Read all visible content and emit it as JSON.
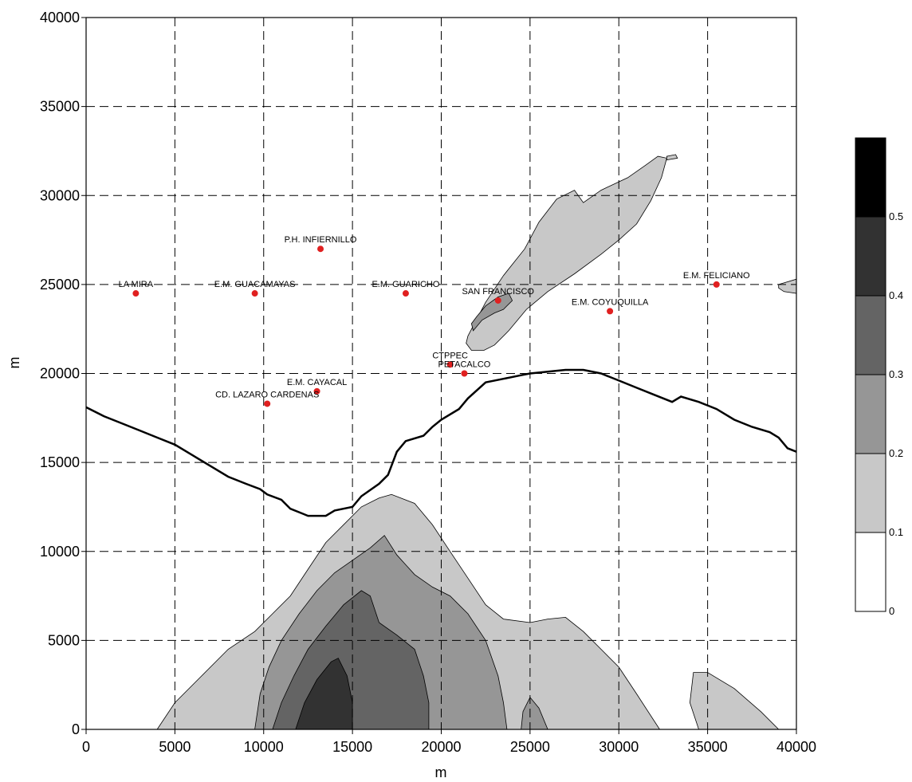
{
  "chart_data": {
    "type": "contour",
    "xlabel": "m",
    "ylabel": "m",
    "xlim": [
      0,
      40000
    ],
    "ylim": [
      0,
      40000
    ],
    "xticks": [
      0,
      5000,
      10000,
      15000,
      20000,
      25000,
      30000,
      35000,
      40000
    ],
    "yticks": [
      0,
      5000,
      10000,
      15000,
      20000,
      25000,
      30000,
      35000,
      40000
    ],
    "grid": true,
    "colorbar": {
      "levels": [
        0,
        0.1,
        0.2,
        0.3,
        0.4,
        0.5
      ],
      "labels": [
        "0",
        "0.1",
        "0.2",
        "0.3",
        "0.4",
        "0.5"
      ],
      "colors": [
        "#ffffff",
        "#c8c8c8",
        "#969696",
        "#646464",
        "#323232",
        "#000000"
      ],
      "placement": "right"
    },
    "contours": [
      {
        "level": 0.1,
        "color": "#c8c8c8",
        "points": [
          [
            4000,
            0
          ],
          [
            5000,
            1500
          ],
          [
            6500,
            3000
          ],
          [
            8000,
            4500
          ],
          [
            9500,
            5500
          ],
          [
            10500,
            6500
          ],
          [
            11500,
            7500
          ],
          [
            12500,
            9000
          ],
          [
            13500,
            10500
          ],
          [
            14500,
            11500
          ],
          [
            15500,
            12500
          ],
          [
            16500,
            13000
          ],
          [
            17200,
            13200
          ],
          [
            18500,
            12700
          ],
          [
            19500,
            11500
          ],
          [
            20500,
            10000
          ],
          [
            21500,
            8500
          ],
          [
            22500,
            7000
          ],
          [
            23500,
            6200
          ],
          [
            25000,
            6000
          ],
          [
            26000,
            6200
          ],
          [
            27000,
            6300
          ],
          [
            28000,
            5500
          ],
          [
            29000,
            4500
          ],
          [
            30000,
            3500
          ],
          [
            31000,
            2000
          ],
          [
            32300,
            0
          ]
        ]
      },
      {
        "level": 0.1,
        "color": "#c8c8c8",
        "points": [
          [
            21500,
            22100
          ],
          [
            22500,
            24000
          ],
          [
            23500,
            25500
          ],
          [
            24700,
            27000
          ],
          [
            25500,
            28500
          ],
          [
            26500,
            29800
          ],
          [
            27500,
            30300
          ],
          [
            28000,
            29600
          ],
          [
            29000,
            30300
          ],
          [
            30500,
            31000
          ],
          [
            31500,
            31700
          ],
          [
            32200,
            32200
          ],
          [
            32700,
            32100
          ],
          [
            32400,
            31000
          ],
          [
            31800,
            29700
          ],
          [
            31000,
            28400
          ],
          [
            30000,
            27500
          ],
          [
            29000,
            26700
          ],
          [
            27500,
            25600
          ],
          [
            26000,
            24600
          ],
          [
            24800,
            23600
          ],
          [
            23800,
            22400
          ],
          [
            23000,
            21600
          ],
          [
            22400,
            21300
          ],
          [
            21700,
            21300
          ],
          [
            21400,
            21700
          ]
        ]
      },
      {
        "level": 0.1,
        "color": "#c8c8c8",
        "points": [
          [
            32700,
            32000
          ],
          [
            33300,
            32100
          ],
          [
            33200,
            32300
          ],
          [
            32700,
            32200
          ]
        ]
      },
      {
        "level": 0.1,
        "color": "#c8c8c8",
        "points": [
          [
            39000,
            25000
          ],
          [
            40000,
            25300
          ],
          [
            40000,
            24500
          ],
          [
            39300,
            24600
          ],
          [
            39000,
            24800
          ]
        ]
      },
      {
        "level": 0.1,
        "color": "#c8c8c8",
        "points": [
          [
            34500,
            0
          ],
          [
            34000,
            1500
          ],
          [
            34200,
            3200
          ],
          [
            35000,
            3200
          ],
          [
            36500,
            2300
          ],
          [
            38000,
            1000
          ],
          [
            39000,
            0
          ]
        ]
      },
      {
        "level": 0.2,
        "color": "#969696",
        "points": [
          [
            9500,
            0
          ],
          [
            9800,
            2000
          ],
          [
            10300,
            3500
          ],
          [
            11000,
            5000
          ],
          [
            12000,
            6500
          ],
          [
            13000,
            7800
          ],
          [
            14000,
            8800
          ],
          [
            15000,
            9500
          ],
          [
            16000,
            10200
          ],
          [
            16800,
            10900
          ],
          [
            17500,
            9800
          ],
          [
            18500,
            8700
          ],
          [
            19500,
            8000
          ],
          [
            20500,
            7500
          ],
          [
            21500,
            6500
          ],
          [
            22500,
            5000
          ],
          [
            23200,
            3000
          ],
          [
            23500,
            1500
          ],
          [
            23700,
            0
          ]
        ]
      },
      {
        "level": 0.2,
        "color": "#969696",
        "points": [
          [
            24500,
            0
          ],
          [
            24600,
            1000
          ],
          [
            25000,
            1800
          ],
          [
            25500,
            1200
          ],
          [
            26000,
            0
          ]
        ]
      },
      {
        "level": 0.2,
        "color": "#969696",
        "points": [
          [
            21800,
            22400
          ],
          [
            22300,
            23000
          ],
          [
            23000,
            23400
          ],
          [
            23500,
            23600
          ],
          [
            24000,
            24100
          ],
          [
            23800,
            24500
          ],
          [
            23200,
            24300
          ],
          [
            22500,
            23800
          ],
          [
            22000,
            23200
          ],
          [
            21700,
            22800
          ]
        ]
      },
      {
        "level": 0.3,
        "color": "#646464",
        "points": [
          [
            10500,
            0
          ],
          [
            11000,
            1500
          ],
          [
            11700,
            3000
          ],
          [
            12500,
            4500
          ],
          [
            13500,
            5800
          ],
          [
            14500,
            7000
          ],
          [
            15500,
            7800
          ],
          [
            16000,
            7500
          ],
          [
            16500,
            6000
          ],
          [
            17500,
            5300
          ],
          [
            18500,
            4500
          ],
          [
            19000,
            3000
          ],
          [
            19300,
            1500
          ],
          [
            19300,
            0
          ]
        ]
      },
      {
        "level": 0.4,
        "color": "#323232",
        "points": [
          [
            11800,
            0
          ],
          [
            12300,
            1500
          ],
          [
            13000,
            2800
          ],
          [
            13800,
            3800
          ],
          [
            14200,
            4000
          ],
          [
            14700,
            3000
          ],
          [
            15000,
            1500
          ],
          [
            15000,
            0
          ]
        ]
      }
    ],
    "boundary_line": [
      [
        0,
        18100
      ],
      [
        1000,
        17600
      ],
      [
        2000,
        17200
      ],
      [
        3000,
        16800
      ],
      [
        4000,
        16400
      ],
      [
        5000,
        16000
      ],
      [
        6000,
        15400
      ],
      [
        7000,
        14800
      ],
      [
        8000,
        14200
      ],
      [
        9000,
        13800
      ],
      [
        9800,
        13500
      ],
      [
        10200,
        13200
      ],
      [
        11000,
        12900
      ],
      [
        11500,
        12400
      ],
      [
        12500,
        12000
      ],
      [
        13500,
        12000
      ],
      [
        14000,
        12300
      ],
      [
        15000,
        12500
      ],
      [
        15500,
        13100
      ],
      [
        16500,
        13800
      ],
      [
        17000,
        14300
      ],
      [
        17500,
        15600
      ],
      [
        18000,
        16200
      ],
      [
        19000,
        16500
      ],
      [
        19500,
        17000
      ],
      [
        20000,
        17400
      ],
      [
        21000,
        18000
      ],
      [
        21500,
        18600
      ],
      [
        22500,
        19500
      ],
      [
        23500,
        19700
      ],
      [
        24500,
        19900
      ],
      [
        25000,
        20000
      ],
      [
        26000,
        20100
      ],
      [
        27000,
        20200
      ],
      [
        28000,
        20200
      ],
      [
        29000,
        20000
      ],
      [
        30000,
        19600
      ],
      [
        31000,
        19200
      ],
      [
        32000,
        18800
      ],
      [
        33000,
        18400
      ],
      [
        33500,
        18700
      ],
      [
        34500,
        18400
      ],
      [
        35500,
        18000
      ],
      [
        36500,
        17400
      ],
      [
        37500,
        17000
      ],
      [
        38500,
        16700
      ],
      [
        39000,
        16400
      ],
      [
        39500,
        15800
      ],
      [
        40000,
        15600
      ]
    ],
    "stations": [
      {
        "name": "LA MIRA",
        "x": 2800,
        "y": 24500
      },
      {
        "name": "E.M. GUACAMAYAS",
        "x": 9500,
        "y": 24500
      },
      {
        "name": "P.H. INFIERNILLO",
        "x": 13200,
        "y": 27000
      },
      {
        "name": "E.M. GUARICHO",
        "x": 18000,
        "y": 24500
      },
      {
        "name": "SAN FRANCISCO",
        "x": 23200,
        "y": 24100
      },
      {
        "name": "E.M. COYUQUILLA",
        "x": 29500,
        "y": 23500
      },
      {
        "name": "E.M. FELICIANO",
        "x": 35500,
        "y": 25000
      },
      {
        "name": "CTPPEC",
        "x": 20500,
        "y": 20500
      },
      {
        "name": "PETACALCO",
        "x": 21300,
        "y": 20000
      },
      {
        "name": "E.M. CAYACAL",
        "x": 13000,
        "y": 19000
      },
      {
        "name": "CD. LAZARO CARDENAS",
        "x": 10200,
        "y": 18300
      }
    ]
  }
}
